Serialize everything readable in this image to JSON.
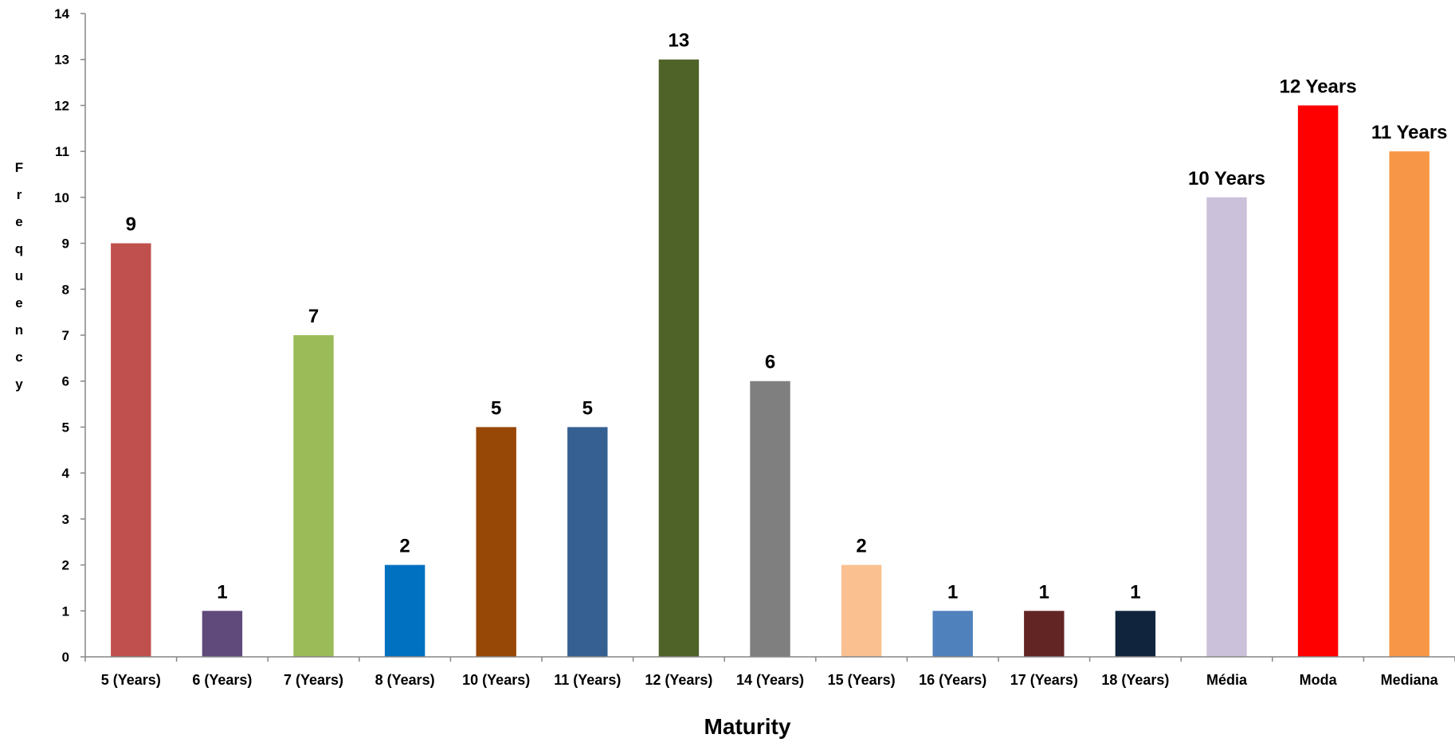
{
  "chart_data": {
    "type": "bar",
    "xlabel": "Maturity",
    "ylabel": "Frequency",
    "ylim": [
      0,
      14
    ],
    "yticks": [
      0,
      1,
      2,
      3,
      4,
      5,
      6,
      7,
      8,
      9,
      10,
      11,
      12,
      13,
      14
    ],
    "grid": false,
    "legend": "none",
    "categories": [
      "5 (Years)",
      "6 (Years)",
      "7 (Years)",
      "8 (Years)",
      "10 (Years)",
      "11 (Years)",
      "12 (Years)",
      "14 (Years)",
      "15 (Years)",
      "16 (Years)",
      "17 (Years)",
      "18 (Years)",
      "Média",
      "Moda",
      "Mediana"
    ],
    "values": [
      9,
      1,
      7,
      2,
      5,
      5,
      13,
      6,
      2,
      1,
      1,
      1,
      10,
      12,
      11
    ],
    "data_labels": [
      "9",
      "1",
      "7",
      "2",
      "5",
      "5",
      "13",
      "6",
      "2",
      "1",
      "1",
      "1",
      "10 Years",
      "12 Years",
      "11 Years"
    ],
    "colors": [
      "#C0504D",
      "#604A7B",
      "#9BBB59",
      "#0070C0",
      "#974706",
      "#366092",
      "#4F6228",
      "#7F7F7F",
      "#FAC090",
      "#4F81BD",
      "#632523",
      "#10243E",
      "#CCC1DA",
      "#FF0000",
      "#F79646"
    ]
  }
}
